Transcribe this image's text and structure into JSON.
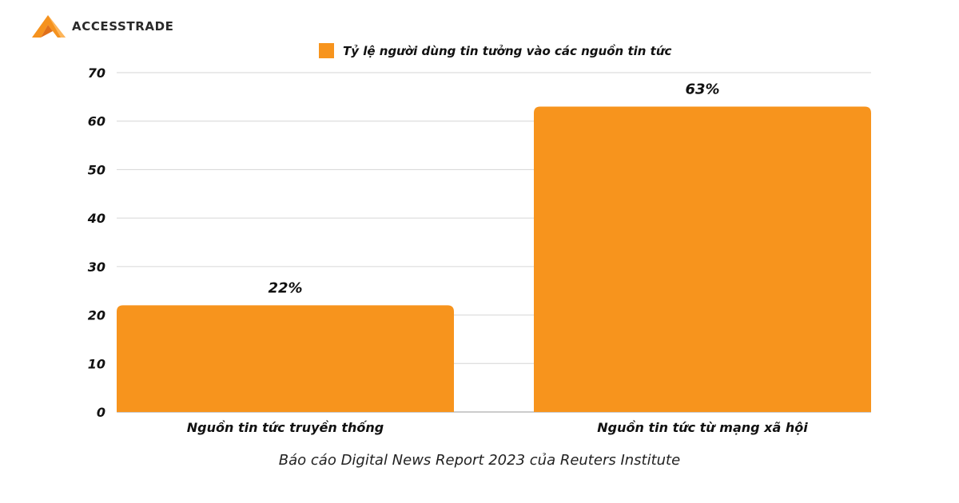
{
  "brand": {
    "name": "ACCESSTRADE",
    "colors": {
      "primary": "#F5921E",
      "dark": "#2a2a2a"
    }
  },
  "caption": "Báo cáo Digital News Report 2023 của Reuters Institute",
  "chart_data": {
    "type": "bar",
    "categories": [
      "Nguồn tin tức truyền thống",
      "Nguồn tin tức từ mạng xã hội"
    ],
    "series": [
      {
        "name": "Tỷ lệ người dùng tin tưởng vào các nguồn tin tức",
        "values": [
          22,
          63
        ],
        "data_labels": [
          "22%",
          "63%"
        ],
        "color": "#F7941D"
      }
    ],
    "yticks": [
      0,
      10,
      20,
      30,
      40,
      50,
      60,
      70
    ],
    "ylim": [
      0,
      70
    ],
    "grid": true,
    "legend_position": "top-center"
  }
}
